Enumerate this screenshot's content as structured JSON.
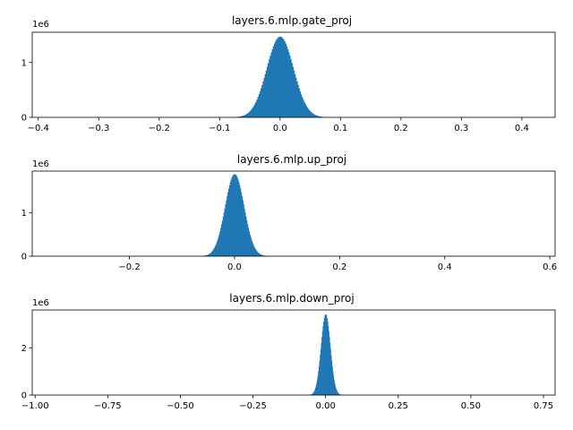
{
  "chart_data": [
    {
      "type": "histogram",
      "title": "layers.6.mlp.gate_proj",
      "offset_label": "1e6",
      "color": "#1f77b4",
      "xlim": [
        -0.41,
        0.455
      ],
      "ylim": [
        0,
        1.55
      ],
      "xticks": [
        -0.4,
        -0.3,
        -0.2,
        -0.1,
        0.0,
        0.1,
        0.2,
        0.3,
        0.4
      ],
      "xtick_labels": [
        "−0.4",
        "−0.3",
        "−0.2",
        "−0.1",
        "0.0",
        "0.1",
        "0.2",
        "0.3",
        "0.4"
      ],
      "yticks": [
        0,
        1
      ],
      "ytick_labels": [
        "0",
        "1"
      ],
      "distribution": {
        "center": 0.0,
        "sigma": 0.022,
        "peak": 1.47,
        "half_width": 0.085,
        "bins": 100
      }
    },
    {
      "type": "histogram",
      "title": "layers.6.mlp.up_proj",
      "offset_label": "1e6",
      "color": "#1f77b4",
      "xlim": [
        -0.385,
        0.61
      ],
      "ylim": [
        0,
        1.95
      ],
      "xticks": [
        -0.2,
        0.0,
        0.2,
        0.4,
        0.6
      ],
      "xtick_labels": [
        "−0.2",
        "0.0",
        "0.2",
        "0.4",
        "0.6"
      ],
      "yticks": [
        0,
        1
      ],
      "ytick_labels": [
        "0",
        "1"
      ],
      "distribution": {
        "center": 0.0,
        "sigma": 0.018,
        "peak": 1.88,
        "half_width": 0.075,
        "bins": 100
      }
    },
    {
      "type": "histogram",
      "title": "layers.6.mlp.down_proj",
      "offset_label": "1e6",
      "color": "#1f77b4",
      "xlim": [
        -1.01,
        0.79
      ],
      "ylim": [
        0,
        3.6
      ],
      "xticks": [
        -1.0,
        -0.75,
        -0.5,
        -0.25,
        0.0,
        0.25,
        0.5,
        0.75
      ],
      "xtick_labels": [
        "−1.00",
        "−0.75",
        "−0.50",
        "−0.25",
        "0.00",
        "0.25",
        "0.50",
        "0.75"
      ],
      "yticks": [
        0,
        2
      ],
      "ytick_labels": [
        "0",
        "2"
      ],
      "distribution": {
        "center": 0.0,
        "sigma": 0.016,
        "peak": 3.42,
        "half_width": 0.09,
        "bins": 90
      }
    }
  ]
}
